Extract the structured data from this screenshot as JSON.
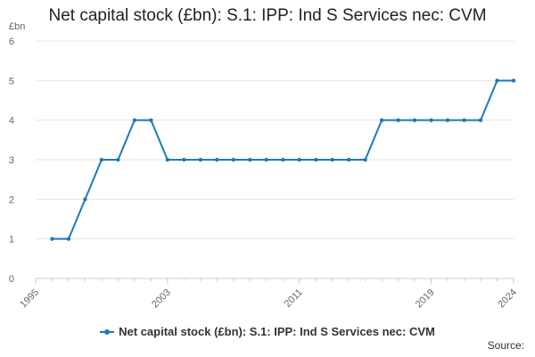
{
  "colors": {
    "series": "#1f7ab8",
    "grid": "#e6e6e6",
    "axis": "#cccccc"
  },
  "footer": {
    "source_label": "Source:"
  },
  "chart_data": {
    "type": "line",
    "title": "Net capital stock (£bn): S.1: IPP: Ind S Services nec: CVM",
    "ylabel": "£bn",
    "xlabel": "",
    "xlim": [
      1995,
      2024
    ],
    "ylim": [
      0,
      6
    ],
    "x_ticks": [
      1995,
      2003,
      2011,
      2019,
      2024
    ],
    "y_ticks": [
      0,
      1,
      2,
      3,
      4,
      5,
      6
    ],
    "grid": true,
    "legend_position": "bottom",
    "series": [
      {
        "name": "Net capital stock (£bn): S.1: IPP: Ind S Services nec: CVM",
        "x": [
          1996,
          1997,
          1998,
          1999,
          2000,
          2001,
          2002,
          2003,
          2004,
          2005,
          2006,
          2007,
          2008,
          2009,
          2010,
          2011,
          2012,
          2013,
          2014,
          2015,
          2016,
          2017,
          2018,
          2019,
          2020,
          2021,
          2022,
          2023,
          2024
        ],
        "values": [
          1,
          1,
          2,
          3,
          3,
          4,
          4,
          3,
          3,
          3,
          3,
          3,
          3,
          3,
          3,
          3,
          3,
          3,
          3,
          3,
          4,
          4,
          4,
          4,
          4,
          4,
          4,
          5,
          5
        ]
      }
    ]
  }
}
